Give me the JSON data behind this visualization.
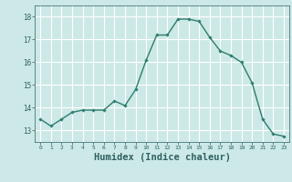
{
  "x": [
    0,
    1,
    2,
    3,
    4,
    5,
    6,
    7,
    8,
    9,
    10,
    11,
    12,
    13,
    14,
    15,
    16,
    17,
    18,
    19,
    20,
    21,
    22,
    23
  ],
  "y": [
    13.5,
    13.2,
    13.5,
    13.8,
    13.9,
    13.9,
    13.9,
    14.3,
    14.1,
    14.8,
    16.1,
    17.2,
    17.2,
    17.9,
    17.9,
    17.8,
    17.1,
    16.5,
    16.3,
    16.0,
    15.1,
    13.5,
    12.85,
    12.75
  ],
  "line_color": "#2e7d6e",
  "marker": "D",
  "marker_size": 1.8,
  "bg_color": "#cce9e7",
  "grid_color": "#ffffff",
  "tick_color": "#2e6060",
  "xlabel": "Humidex (Indice chaleur)",
  "xlabel_fontsize": 7.5,
  "ylim": [
    12.5,
    18.5
  ],
  "xlim": [
    -0.5,
    23.5
  ],
  "yticks": [
    13,
    14,
    15,
    16,
    17,
    18
  ],
  "xticks": [
    0,
    1,
    2,
    3,
    4,
    5,
    6,
    7,
    8,
    9,
    10,
    11,
    12,
    13,
    14,
    15,
    16,
    17,
    18,
    19,
    20,
    21,
    22,
    23
  ]
}
